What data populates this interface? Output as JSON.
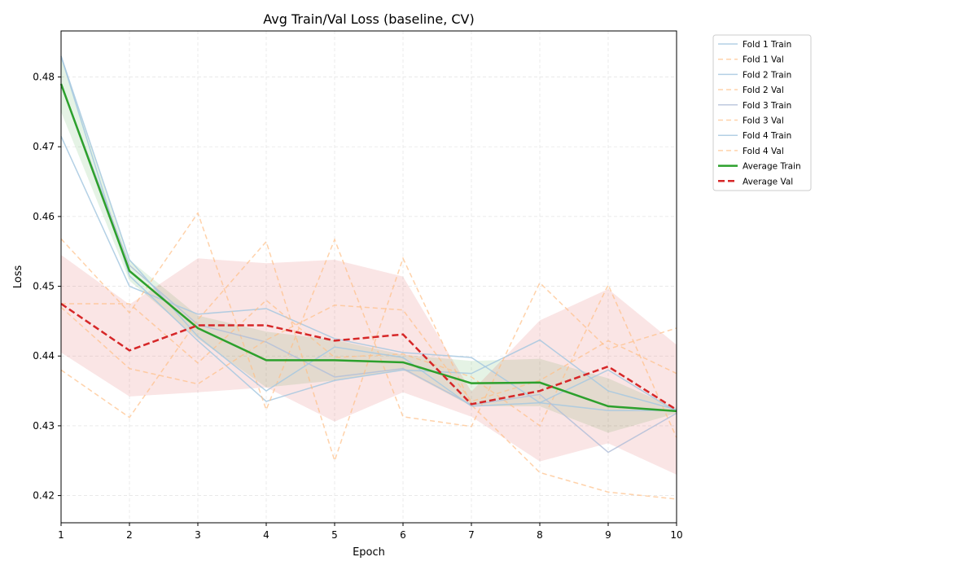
{
  "chart_data": {
    "type": "line",
    "title": "Avg Train/Val Loss (baseline, CV)",
    "xlabel": "Epoch",
    "ylabel": "Loss",
    "xlim": [
      1,
      10
    ],
    "ylim": [
      0.4161,
      0.4866
    ],
    "xticks": [
      1,
      2,
      3,
      4,
      5,
      6,
      7,
      8,
      9,
      10
    ],
    "yticks": [
      0.42,
      0.43,
      0.44,
      0.45,
      0.46,
      0.47,
      0.48
    ],
    "ytick_labels": [
      "0.42",
      "0.43",
      "0.44",
      "0.45",
      "0.46",
      "0.47",
      "0.48"
    ],
    "grid": true,
    "legend_position": "outside top-right",
    "x": [
      1,
      2,
      3,
      4,
      5,
      6,
      7,
      8,
      9,
      10
    ],
    "series": [
      {
        "name": "Fold 1 Train",
        "kind": "fold_train",
        "color": "#a6c8e0",
        "values": [
          0.4715,
          0.45,
          0.446,
          0.4468,
          0.4425,
          0.4405,
          0.4398,
          0.4333,
          0.4322,
          0.4322
        ]
      },
      {
        "name": "Fold 1 Val",
        "kind": "fold_val",
        "color": "#ffbf86",
        "values": [
          0.4475,
          0.4475,
          0.439,
          0.448,
          0.4398,
          0.4403,
          0.437,
          0.43,
          0.4502,
          0.4283
        ]
      },
      {
        "name": "Fold 2 Train",
        "kind": "fold_train",
        "color": "#a6c8e0",
        "values": [
          0.483,
          0.4515,
          0.4422,
          0.4335,
          0.4365,
          0.438,
          0.4375,
          0.4423,
          0.435,
          0.4323
        ]
      },
      {
        "name": "Fold 2 Val",
        "kind": "fold_val",
        "color": "#ffbf86",
        "values": [
          0.4568,
          0.4462,
          0.4605,
          0.4323,
          0.4567,
          0.4313,
          0.4299,
          0.4505,
          0.441,
          0.444
        ]
      },
      {
        "name": "Fold 3 Train",
        "kind": "fold_train",
        "color": "#b3bfd9",
        "values": [
          0.479,
          0.453,
          0.4445,
          0.442,
          0.437,
          0.4382,
          0.433,
          0.4345,
          0.4262,
          0.4318
        ]
      },
      {
        "name": "Fold 3 Val",
        "kind": "fold_val",
        "color": "#ffbf86",
        "values": [
          0.438,
          0.4312,
          0.4452,
          0.4564,
          0.425,
          0.454,
          0.433,
          0.4233,
          0.4205,
          0.4195
        ]
      },
      {
        "name": "Fold 4 Train",
        "kind": "fold_train",
        "color": "#a6c8e0",
        "values": [
          0.483,
          0.4538,
          0.4428,
          0.435,
          0.4413,
          0.4398,
          0.4328,
          0.4333,
          0.438,
          0.432
        ]
      },
      {
        "name": "Fold 4 Val",
        "kind": "fold_val",
        "color": "#ffbf86",
        "values": [
          0.447,
          0.4382,
          0.436,
          0.4423,
          0.4473,
          0.4466,
          0.4335,
          0.4365,
          0.4422,
          0.4375
        ]
      },
      {
        "name": "Average Train",
        "kind": "avg_train",
        "color": "#2ca02c",
        "values": [
          0.479,
          0.4522,
          0.444,
          0.4394,
          0.4394,
          0.4391,
          0.4361,
          0.4362,
          0.4328,
          0.4321
        ]
      },
      {
        "name": "Average Val",
        "kind": "avg_val",
        "color": "#d62728",
        "values": [
          0.4475,
          0.4408,
          0.4444,
          0.4444,
          0.4422,
          0.4431,
          0.4331,
          0.435,
          0.4385,
          0.4323
        ]
      }
    ],
    "bands": [
      {
        "of": "Average Train",
        "color": "#2ca02c",
        "opacity": 0.12,
        "lower": [
          0.475,
          0.4508,
          0.4425,
          0.4355,
          0.4365,
          0.438,
          0.4328,
          0.4328,
          0.429,
          0.4318
        ],
        "upper": [
          0.483,
          0.4538,
          0.4458,
          0.4435,
          0.4423,
          0.4402,
          0.4393,
          0.4396,
          0.4368,
          0.4325
        ]
      },
      {
        "of": "Average Val",
        "color": "#d62728",
        "opacity": 0.12,
        "lower": [
          0.4405,
          0.4342,
          0.4348,
          0.4355,
          0.4306,
          0.4348,
          0.4313,
          0.4249,
          0.4275,
          0.423
        ]
      },
      {
        "of": "Average Val",
        "color": "#d62728",
        "opacity": 0.12,
        "upper_only": true,
        "upper": [
          0.4545,
          0.4474,
          0.454,
          0.4533,
          0.4538,
          0.4514,
          0.4349,
          0.4451,
          0.4496,
          0.4416
        ]
      }
    ]
  }
}
